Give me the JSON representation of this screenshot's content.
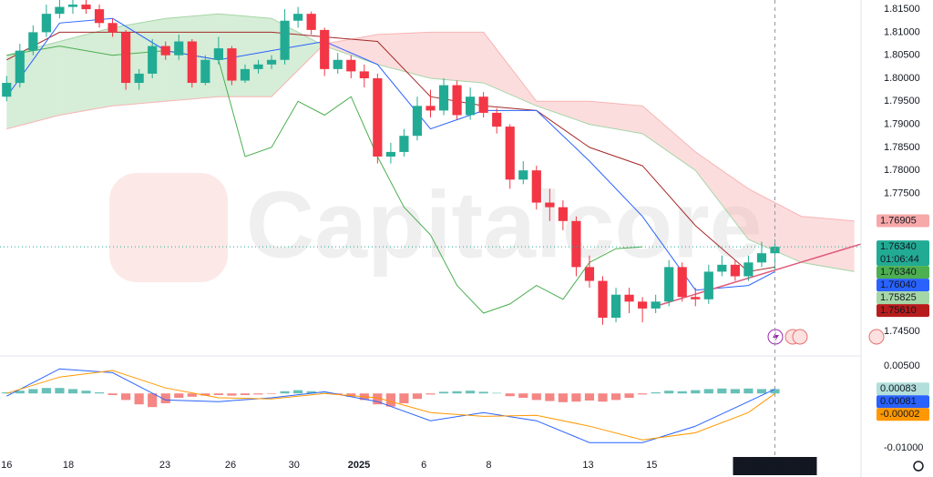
{
  "watermark": "Capitalcore",
  "chart_data": [
    {
      "type": "candlestick",
      "up_color": "#22ab94",
      "down_color": "#f23645",
      "xlim": [
        -0.5,
        64.5
      ],
      "ylim": [
        1.7399,
        1.817
      ],
      "xticks": [
        {
          "value": 0,
          "label": "16"
        },
        {
          "value": 4.66,
          "label": "18"
        },
        {
          "value": 11.95,
          "label": "23"
        },
        {
          "value": 16.9,
          "label": "26"
        },
        {
          "value": 21.7,
          "label": "30"
        },
        {
          "value": 26.6,
          "label": "2025"
        },
        {
          "value": 31.5,
          "label": "6"
        },
        {
          "value": 36.4,
          "label": "8"
        },
        {
          "value": 43.9,
          "label": "13"
        },
        {
          "value": 48.7,
          "label": "15"
        }
      ],
      "yticks": [
        {
          "value": 1.815,
          "label": "1.81500"
        },
        {
          "value": 1.81,
          "label": "1.81000"
        },
        {
          "value": 1.805,
          "label": "1.80500"
        },
        {
          "value": 1.8,
          "label": "1.80000"
        },
        {
          "value": 1.795,
          "label": "1.79500"
        },
        {
          "value": 1.79,
          "label": "1.79000"
        },
        {
          "value": 1.785,
          "label": "1.78500"
        },
        {
          "value": 1.78,
          "label": "1.78000"
        },
        {
          "value": 1.775,
          "label": "1.77500"
        },
        {
          "value": 1.75,
          "label": "1.75000"
        },
        {
          "value": 1.745,
          "label": "1.74500"
        }
      ],
      "candles": [
        [
          1.796,
          1.8005,
          1.795,
          1.799
        ],
        [
          1.799,
          1.8075,
          1.798,
          1.806
        ],
        [
          1.806,
          1.8115,
          1.805,
          1.81
        ],
        [
          1.81,
          1.816,
          1.809,
          1.814
        ],
        [
          1.814,
          1.8175,
          1.813,
          1.8155
        ],
        [
          1.8155,
          1.8175,
          1.814,
          1.816
        ],
        [
          1.816,
          1.817,
          1.814,
          1.815
        ],
        [
          1.815,
          1.816,
          1.811,
          1.812
        ],
        [
          1.812,
          1.813,
          1.809,
          1.81
        ],
        [
          1.81,
          1.8105,
          1.7975,
          1.799
        ],
        [
          1.799,
          1.802,
          1.7975,
          1.801
        ],
        [
          1.801,
          1.8085,
          1.8,
          1.807
        ],
        [
          1.807,
          1.808,
          1.804,
          1.805
        ],
        [
          1.805,
          1.8095,
          1.804,
          1.808
        ],
        [
          1.808,
          1.8085,
          1.798,
          1.799
        ],
        [
          1.799,
          1.805,
          1.7985,
          1.804
        ],
        [
          1.804,
          1.809,
          1.803,
          1.8065
        ],
        [
          1.8065,
          1.807,
          1.7985,
          1.7995
        ],
        [
          1.7995,
          1.803,
          1.799,
          1.802
        ],
        [
          1.802,
          1.804,
          1.801,
          1.803
        ],
        [
          1.803,
          1.805,
          1.802,
          1.804
        ],
        [
          1.804,
          1.815,
          1.803,
          1.8125
        ],
        [
          1.8125,
          1.8155,
          1.811,
          1.814
        ],
        [
          1.814,
          1.8145,
          1.8095,
          1.8105
        ],
        [
          1.8105,
          1.811,
          1.8005,
          1.802
        ],
        [
          1.802,
          1.8055,
          1.801,
          1.804
        ],
        [
          1.804,
          1.805,
          1.8,
          1.8015
        ],
        [
          1.8015,
          1.803,
          1.798,
          1.8
        ],
        [
          1.8,
          1.801,
          1.7815,
          1.783
        ],
        [
          1.783,
          1.786,
          1.7815,
          1.784
        ],
        [
          1.784,
          1.789,
          1.783,
          1.7875
        ],
        [
          1.7875,
          1.796,
          1.7865,
          1.794
        ],
        [
          1.794,
          1.7975,
          1.7915,
          1.793
        ],
        [
          1.793,
          1.8,
          1.792,
          1.7985
        ],
        [
          1.7985,
          1.7995,
          1.791,
          1.792
        ],
        [
          1.792,
          1.798,
          1.791,
          1.796
        ],
        [
          1.796,
          1.797,
          1.7915,
          1.7925
        ],
        [
          1.7925,
          1.7935,
          1.788,
          1.7895
        ],
        [
          1.7895,
          1.79,
          1.776,
          1.778
        ],
        [
          1.778,
          1.782,
          1.777,
          1.78
        ],
        [
          1.78,
          1.781,
          1.7715,
          1.773
        ],
        [
          1.773,
          1.776,
          1.769,
          1.772
        ],
        [
          1.772,
          1.7735,
          1.767,
          1.769
        ],
        [
          1.769,
          1.77,
          1.757,
          1.759
        ],
        [
          1.759,
          1.7615,
          1.7545,
          1.756
        ],
        [
          1.756,
          1.757,
          1.7465,
          1.748
        ],
        [
          1.748,
          1.7545,
          1.747,
          1.753
        ],
        [
          1.753,
          1.7545,
          1.749,
          1.7515
        ],
        [
          1.7515,
          1.7525,
          1.747,
          1.75
        ],
        [
          1.75,
          1.753,
          1.749,
          1.7515
        ],
        [
          1.7515,
          1.7605,
          1.7505,
          1.759
        ],
        [
          1.759,
          1.76,
          1.7515,
          1.7525
        ],
        [
          1.7525,
          1.7545,
          1.7505,
          1.752
        ],
        [
          1.752,
          1.7595,
          1.751,
          1.758
        ],
        [
          1.758,
          1.7615,
          1.757,
          1.7595
        ],
        [
          1.7595,
          1.7605,
          1.756,
          1.757
        ],
        [
          1.757,
          1.7615,
          1.756,
          1.76
        ],
        [
          1.76,
          1.7645,
          1.759,
          1.762
        ],
        [
          1.762,
          1.765,
          1.7585,
          1.7634
        ]
      ],
      "cloud": {
        "x": [
          0,
          4,
          8,
          12,
          16,
          20,
          24,
          28,
          32,
          36,
          40,
          44,
          48,
          52,
          56,
          60,
          64
        ],
        "span_a": [
          1.805,
          1.808,
          1.811,
          1.813,
          1.814,
          1.813,
          1.807,
          1.803,
          1.8,
          1.799,
          1.794,
          1.79,
          1.788,
          1.78,
          1.765,
          1.76,
          1.758
        ],
        "span_b": [
          1.789,
          1.792,
          1.794,
          1.795,
          1.796,
          1.796,
          1.8075,
          1.8095,
          1.81,
          1.81,
          1.795,
          1.795,
          1.794,
          1.784,
          1.776,
          1.77,
          1.769
        ],
        "up_color": "#a5d6a7",
        "down_color": "#f8b4b4"
      },
      "lines": [
        {
          "color": "#4caf50",
          "x": [
            0,
            4,
            8,
            12,
            16,
            18,
            20,
            22,
            24,
            26,
            28,
            30,
            32,
            34,
            36,
            38,
            40,
            42,
            44,
            46,
            48
          ],
          "values": [
            1.805,
            1.807,
            1.805,
            1.806,
            1.804,
            1.783,
            1.785,
            1.795,
            1.792,
            1.796,
            1.783,
            1.772,
            1.766,
            1.755,
            1.749,
            1.751,
            1.755,
            1.752,
            1.76,
            1.763,
            1.7634
          ]
        },
        {
          "color": "#a52a2a",
          "x": [
            0,
            4,
            8,
            12,
            16,
            20,
            24,
            28,
            32,
            36,
            40,
            44,
            48,
            52,
            56,
            58
          ],
          "values": [
            1.804,
            1.81,
            1.81,
            1.81,
            1.81,
            1.81,
            1.809,
            1.808,
            1.796,
            1.794,
            1.793,
            1.785,
            1.781,
            1.768,
            1.758,
            1.759
          ]
        },
        {
          "color": "#2962ff",
          "x": [
            0,
            4,
            8,
            12,
            16,
            20,
            24,
            28,
            32,
            36,
            40,
            44,
            48,
            52,
            56,
            58
          ],
          "values": [
            1.796,
            1.812,
            1.813,
            1.806,
            1.804,
            1.806,
            1.808,
            1.803,
            1.789,
            1.793,
            1.793,
            1.782,
            1.77,
            1.754,
            1.755,
            1.758
          ]
        }
      ],
      "trendline": {
        "color": "#e05a7a",
        "x": [
          49,
          64.5
        ],
        "values": [
          1.7505,
          1.764
        ]
      },
      "price_labels": [
        {
          "value": 1.76905,
          "label": "1.76905",
          "color": "#f7a8a8",
          "text_color": "#131722"
        },
        {
          "value": 1.7634,
          "label": "1.76340",
          "countdown": "01:06:44",
          "color": "#22ab94",
          "text_color": "#ffffff"
        },
        {
          "value": 1.7634,
          "label": "1.76340",
          "color": "#4caf50",
          "text_color": "#ffffff"
        },
        {
          "value": 1.7604,
          "label": "1.76040",
          "color": "#2962ff",
          "text_color": "#ffffff"
        },
        {
          "value": 1.75825,
          "label": "1.75825",
          "color": "#a5d6a7",
          "text_color": "#131722"
        },
        {
          "value": 1.7561,
          "label": "1.75610",
          "color": "#b71c1c",
          "text_color": "#ffffff"
        }
      ],
      "crosshair": {
        "x": 58,
        "label": "20 Jan '25",
        "time": "20:00"
      }
    },
    {
      "type": "macd",
      "ylim": [
        -0.0113,
        0.0067
      ],
      "yticks": [
        {
          "value": 0.005,
          "label": "0.00500"
        },
        {
          "value": -0.01,
          "label": "-0.01000"
        }
      ],
      "up_color": "#26a69a",
      "down_color": "#ef5350",
      "histogram": [
        0.0002,
        0.0005,
        0.0008,
        0.001,
        0.001,
        0.0008,
        0.0005,
        0.0002,
        -0.0003,
        -0.0012,
        -0.002,
        -0.0025,
        -0.0018,
        -0.0008,
        -0.0006,
        -0.0004,
        -0.0003,
        -0.0004,
        -0.0003,
        -0.0002,
        -0.0001,
        0.0004,
        0.0006,
        0.0004,
        0.0001,
        -0.0002,
        -0.0006,
        -0.0012,
        -0.002,
        -0.0024,
        -0.0018,
        -0.001,
        -0.0002,
        0.0003,
        0.0004,
        0.0005,
        0.0003,
        0.0001,
        -0.0005,
        -0.0008,
        -0.0012,
        -0.0014,
        -0.0016,
        -0.0015,
        -0.0013,
        -0.0015,
        -0.0012,
        -0.0008,
        -0.0002,
        0.0002,
        0.0005,
        0.0004,
        0.0006,
        0.0008,
        0.0009,
        0.0008,
        0.0009,
        0.0008,
        0.0008
      ],
      "lines": [
        {
          "color": "#2962ff",
          "x": [
            0,
            4,
            8,
            12,
            16,
            20,
            24,
            28,
            32,
            36,
            40,
            44,
            48,
            52,
            56,
            58
          ],
          "values": [
            -0.0005,
            0.0045,
            0.0038,
            -0.0012,
            -0.0015,
            -0.0008,
            0.0003,
            -0.0015,
            -0.005,
            -0.0035,
            -0.005,
            -0.009,
            -0.009,
            -0.006,
            -0.0015,
            0.0008
          ]
        },
        {
          "color": "#ff9800",
          "x": [
            0,
            4,
            8,
            12,
            16,
            20,
            24,
            28,
            32,
            36,
            40,
            44,
            48,
            52,
            56,
            58
          ],
          "values": [
            0,
            0.003,
            0.0042,
            0.001,
            -0.0008,
            -0.001,
            0,
            -0.0008,
            -0.0035,
            -0.0042,
            -0.004,
            -0.006,
            -0.0085,
            -0.0072,
            -0.0035,
            -2e-05
          ]
        }
      ],
      "value_labels": [
        {
          "value": 0.00083,
          "label": "0.00083",
          "color": "#b2dfdb",
          "text_color": "#131722"
        },
        {
          "value": 0.00081,
          "label": "0.00081",
          "color": "#2962ff",
          "text_color": "#ffffff"
        },
        {
          "value": -2e-05,
          "label": "-0.00002",
          "color": "#ff9800",
          "text_color": "#131722"
        }
      ]
    }
  ]
}
